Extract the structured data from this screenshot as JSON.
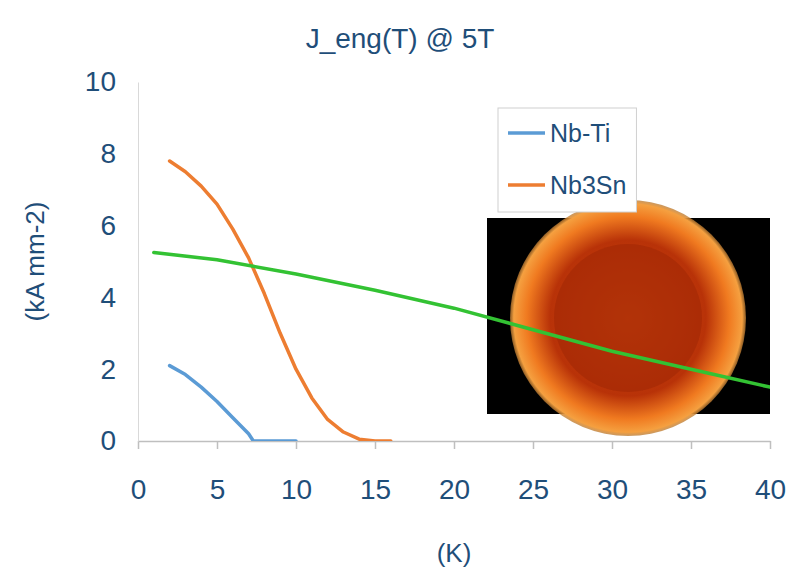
{
  "chart_data": {
    "type": "line",
    "title": "J_eng(T) @ 5T",
    "x_label": "(K)",
    "y_label": "(kA mm-2)",
    "xlim": [
      0,
      40
    ],
    "xticks": [
      0,
      5,
      10,
      15,
      20,
      25,
      30,
      35,
      40
    ],
    "ylim": [
      0,
      10
    ],
    "yticks": [
      0,
      2,
      4,
      6,
      8,
      10
    ],
    "grid": false,
    "legend": "upper right",
    "series": [
      {
        "name": "Nb-Ti",
        "color": "#5b9bd5",
        "x": [
          2,
          3,
          4,
          5,
          6,
          7,
          7.3,
          8,
          10
        ],
        "values": [
          2.1,
          1.85,
          1.5,
          1.1,
          0.65,
          0.2,
          0,
          0,
          0
        ]
      },
      {
        "name": "Nb3Sn",
        "color": "#ed7d31",
        "x": [
          2,
          3,
          4,
          5,
          6,
          7,
          8,
          9,
          10,
          11,
          12,
          13,
          14,
          15,
          16
        ],
        "values": [
          7.8,
          7.5,
          7.1,
          6.6,
          5.9,
          5.1,
          4.1,
          3.0,
          2.0,
          1.2,
          0.6,
          0.25,
          0.05,
          0,
          0
        ]
      },
      {
        "color": "#33c233",
        "x": [
          1,
          5,
          10,
          15,
          20,
          25,
          30,
          35,
          40
        ],
        "values": [
          5.25,
          5.05,
          4.65,
          4.2,
          3.7,
          3.1,
          2.5,
          2.0,
          1.5
        ]
      }
    ]
  }
}
